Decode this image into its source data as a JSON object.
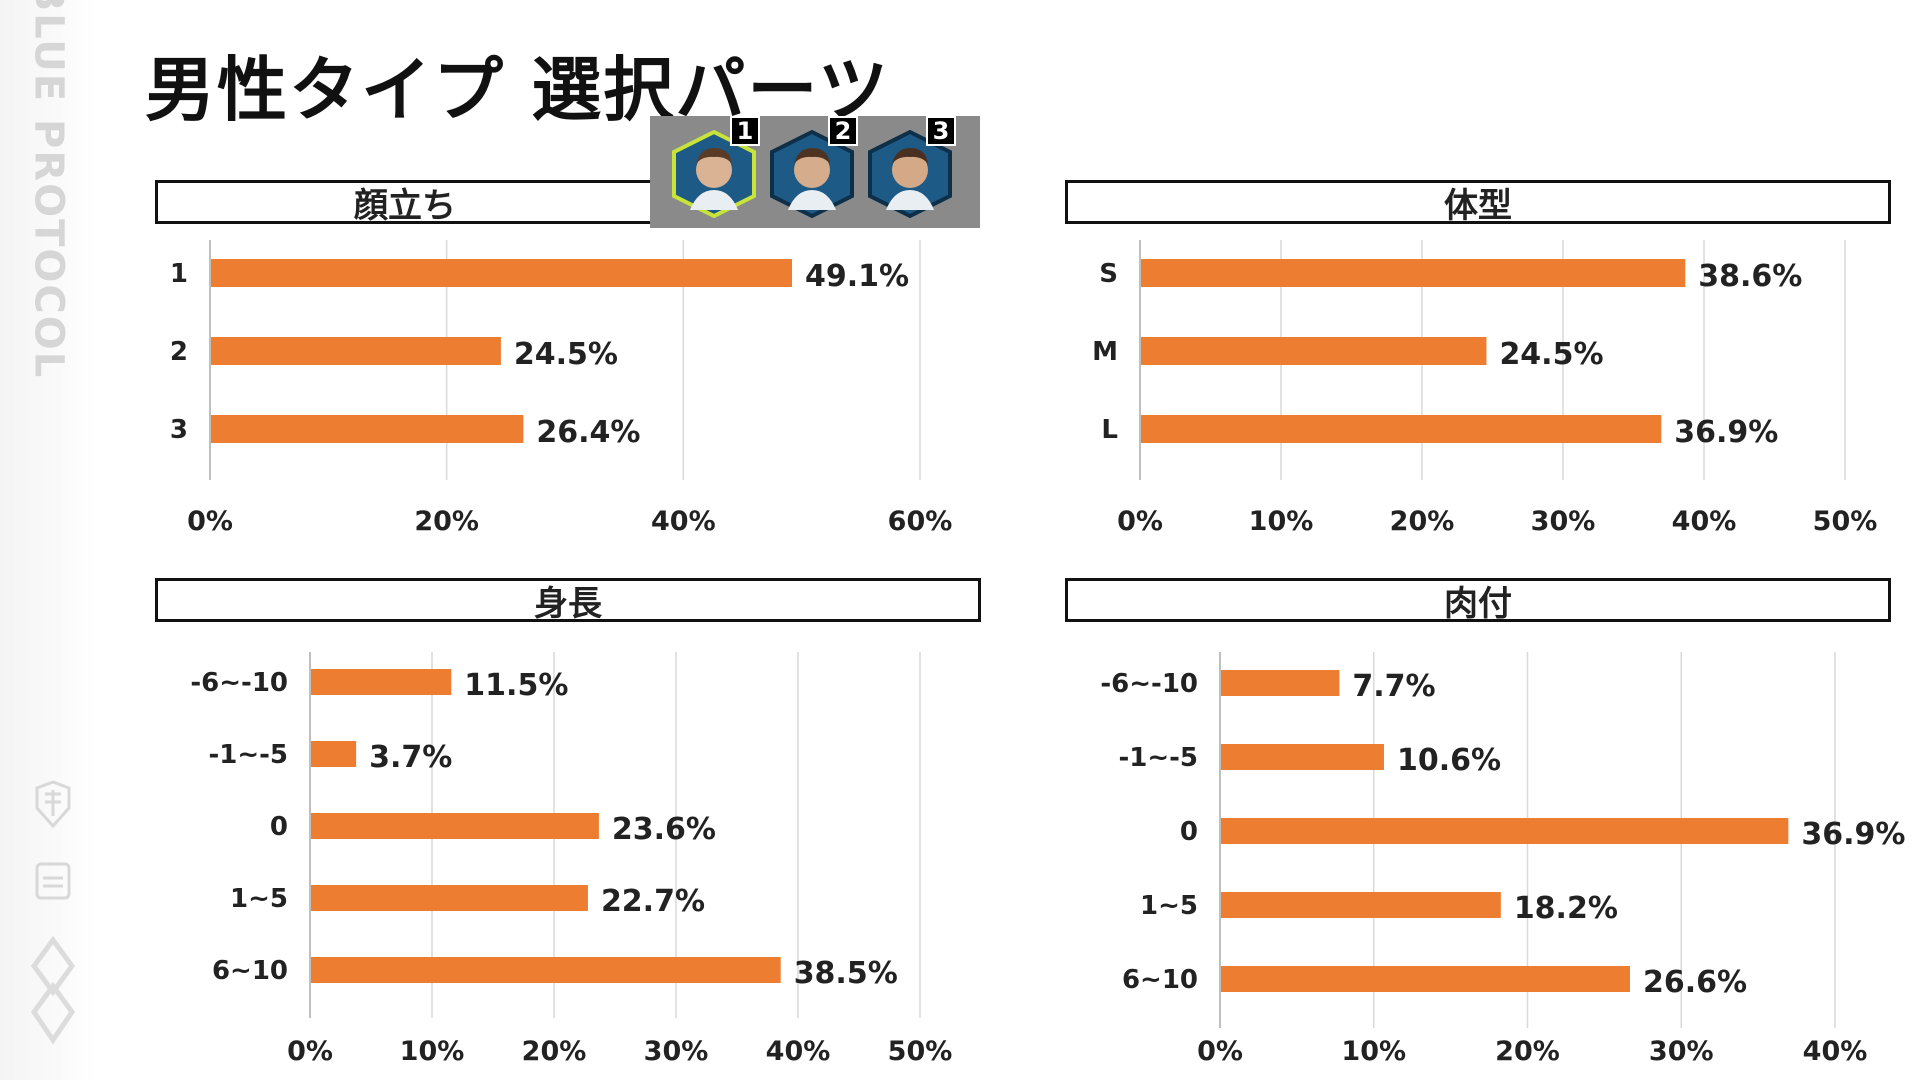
{
  "side": {
    "brand": "BLUE PROTOCOL"
  },
  "page": {
    "title": "男性タイプ 選択パーツ"
  },
  "face_selector": {
    "numbers": [
      "1",
      "2",
      "3"
    ],
    "selected": "1"
  },
  "colors": {
    "bar": "#ED7D31",
    "grid": "#d9d9d9",
    "axis": "#bfbfbf",
    "highlight": "#c8e43a"
  },
  "chart_data": [
    {
      "type": "bar",
      "orientation": "horizontal",
      "title": "顔立ち",
      "categories": [
        "1",
        "2",
        "3"
      ],
      "values": [
        49.1,
        24.5,
        26.4
      ],
      "value_labels": [
        "49.1%",
        "24.5%",
        "26.4%"
      ],
      "ticks": [
        "0%",
        "20%",
        "40%",
        "60%"
      ],
      "xlim": [
        0,
        60
      ],
      "grid": true
    },
    {
      "type": "bar",
      "orientation": "horizontal",
      "title": "体型",
      "categories": [
        "S",
        "M",
        "L"
      ],
      "values": [
        38.6,
        24.5,
        36.9
      ],
      "value_labels": [
        "38.6%",
        "24.5%",
        "36.9%"
      ],
      "ticks": [
        "0%",
        "10%",
        "20%",
        "30%",
        "40%",
        "50%"
      ],
      "xlim": [
        0,
        50
      ],
      "grid": true
    },
    {
      "type": "bar",
      "orientation": "horizontal",
      "title": "身長",
      "categories": [
        "-6~-10",
        "-1~-5",
        "0",
        "1~5",
        "6~10"
      ],
      "values": [
        11.5,
        3.7,
        23.6,
        22.7,
        38.5
      ],
      "value_labels": [
        "11.5%",
        "3.7%",
        "23.6%",
        "22.7%",
        "38.5%"
      ],
      "ticks": [
        "0%",
        "10%",
        "20%",
        "30%",
        "40%",
        "50%"
      ],
      "xlim": [
        0,
        50
      ],
      "grid": true
    },
    {
      "type": "bar",
      "orientation": "horizontal",
      "title": "肉付",
      "categories": [
        "-6~-10",
        "-1~-5",
        "0",
        "1~5",
        "6~10"
      ],
      "values": [
        7.7,
        10.6,
        36.9,
        18.2,
        26.6
      ],
      "value_labels": [
        "7.7%",
        "10.6%",
        "36.9%",
        "18.2%",
        "26.6%"
      ],
      "ticks": [
        "0%",
        "10%",
        "20%",
        "30%",
        "40%"
      ],
      "xlim": [
        0,
        40
      ],
      "grid": true
    }
  ]
}
